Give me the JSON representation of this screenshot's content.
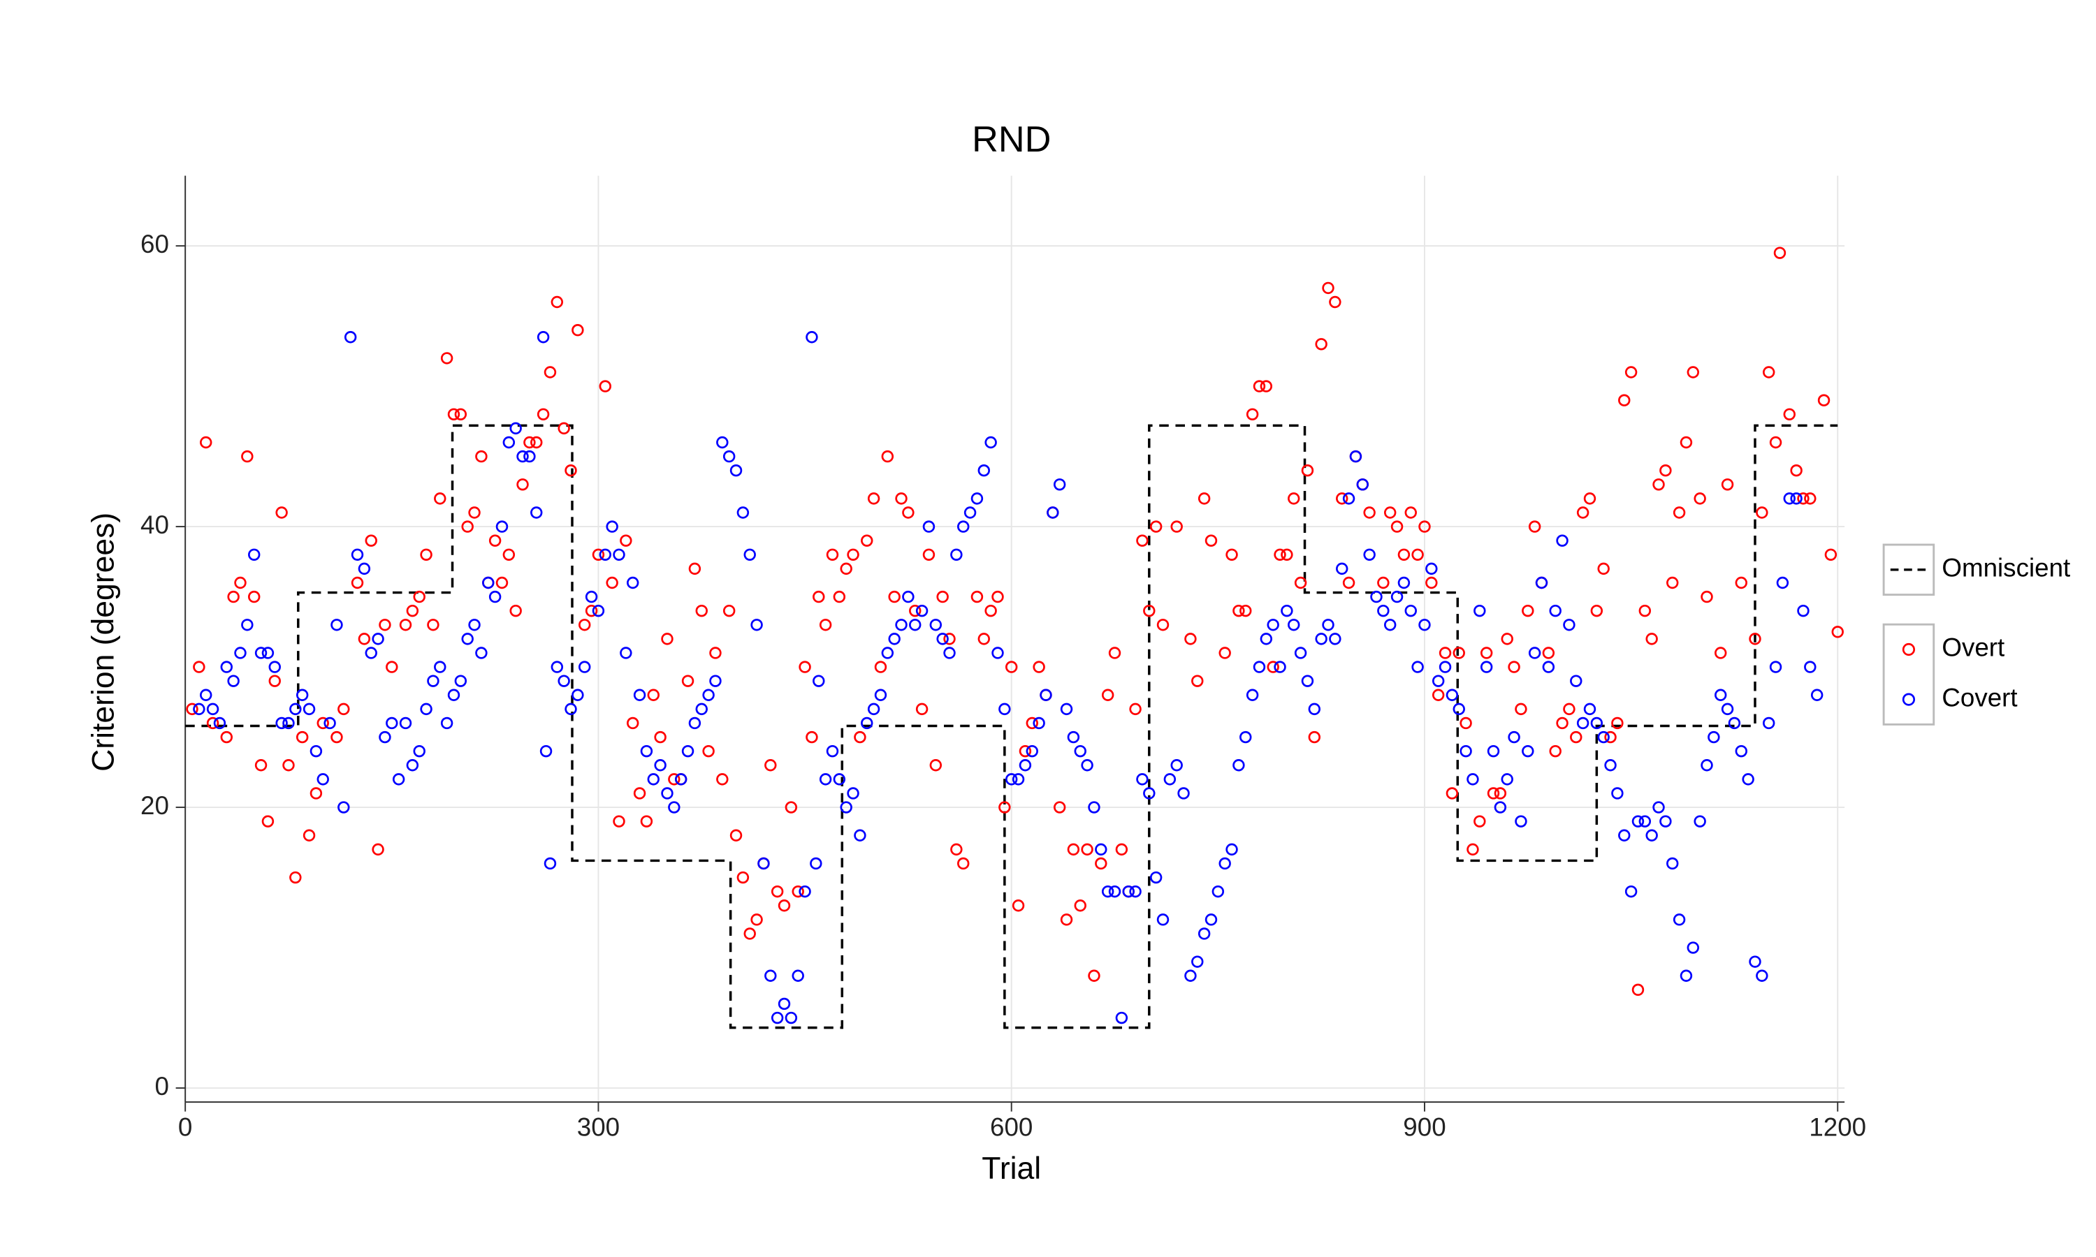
{
  "chart_data": {
    "type": "scatter",
    "title": "RND",
    "x_label": "Trial",
    "y_label": "Criterion (degrees)",
    "xlim": [
      0,
      1205
    ],
    "ylim": [
      -1,
      65
    ],
    "xticks": [
      0,
      300,
      600,
      900,
      1200
    ],
    "yticks": [
      0,
      20,
      40,
      60
    ],
    "grid": true,
    "legend_position": "right",
    "series": [
      {
        "name": "Omniscient",
        "type": "line",
        "color": "#000000",
        "dashed": true,
        "x": [
          0,
          82,
          82,
          194,
          194,
          281,
          281,
          396,
          396,
          477,
          477,
          595,
          595,
          700,
          700,
          813,
          813,
          924,
          924,
          1025,
          1025,
          1140,
          1140,
          1200
        ],
        "values": [
          25.8,
          25.8,
          35.3,
          35.3,
          47.2,
          47.2,
          16.2,
          16.2,
          4.3,
          4.3,
          25.8,
          25.8,
          4.3,
          4.3,
          47.2,
          47.2,
          35.3,
          35.3,
          16.2,
          16.2,
          25.8,
          25.8,
          47.2,
          47.2
        ]
      },
      {
        "name": "Overt",
        "type": "scatter",
        "color": "#ff0000",
        "x": [
          5,
          10,
          15,
          20,
          30,
          35,
          40,
          45,
          50,
          55,
          60,
          65,
          70,
          75,
          80,
          85,
          90,
          95,
          100,
          110,
          115,
          125,
          130,
          135,
          140,
          145,
          150,
          160,
          165,
          170,
          175,
          180,
          185,
          190,
          195,
          200,
          205,
          210,
          215,
          220,
          225,
          230,
          235,
          240,
          245,
          250,
          255,
          260,
          265,
          270,
          275,
          280,
          285,
          290,
          295,
          300,
          305,
          310,
          315,
          320,
          325,
          330,
          335,
          340,
          345,
          350,
          355,
          360,
          365,
          370,
          375,
          380,
          385,
          390,
          395,
          400,
          405,
          410,
          415,
          420,
          425,
          430,
          435,
          440,
          445,
          450,
          455,
          460,
          465,
          470,
          475,
          480,
          485,
          490,
          495,
          500,
          505,
          510,
          515,
          520,
          525,
          530,
          535,
          540,
          545,
          550,
          555,
          560,
          565,
          575,
          580,
          585,
          590,
          595,
          600,
          605,
          610,
          615,
          620,
          625,
          630,
          635,
          640,
          645,
          650,
          655,
          660,
          665,
          670,
          675,
          680,
          685,
          690,
          695,
          700,
          705,
          710,
          720,
          730,
          735,
          740,
          745,
          755,
          760,
          765,
          770,
          775,
          780,
          785,
          790,
          795,
          800,
          805,
          810,
          815,
          820,
          825,
          830,
          835,
          840,
          845,
          850,
          855,
          860,
          870,
          875,
          880,
          885,
          890,
          895,
          900,
          905,
          910,
          915,
          920,
          925,
          930,
          935,
          940,
          945,
          950,
          955,
          960,
          965,
          970,
          975,
          980,
          985,
          990,
          995,
          1000,
          1005,
          1010,
          1015,
          1020,
          1025,
          1030,
          1035,
          1040,
          1045,
          1050,
          1055,
          1060,
          1065,
          1070,
          1075,
          1080,
          1085,
          1090,
          1095,
          1100,
          1105,
          1115,
          1120,
          1130,
          1140,
          1145,
          1150,
          1155,
          1158,
          1165,
          1170,
          1175,
          1180,
          1190,
          1195,
          1200
        ],
        "values": [
          27,
          30,
          46,
          26,
          25,
          35,
          36,
          45,
          35,
          23,
          19,
          29,
          41,
          23,
          15,
          25,
          18,
          21,
          26,
          25,
          27,
          36,
          32,
          39,
          17,
          33,
          30,
          33,
          34,
          35,
          38,
          33,
          42,
          52,
          48,
          48,
          40,
          41,
          45,
          36,
          39,
          36,
          38,
          34,
          43,
          46,
          46,
          48,
          51,
          56,
          47,
          44,
          54,
          33,
          34,
          38,
          50,
          36,
          19,
          39,
          26,
          21,
          19,
          28,
          25,
          32,
          22,
          22,
          29,
          37,
          34,
          24,
          31,
          22,
          34,
          18,
          15,
          11,
          12,
          16,
          23,
          14,
          13,
          20,
          14,
          30,
          25,
          35,
          33,
          38,
          35,
          37,
          38,
          25,
          39,
          42,
          30,
          45,
          35,
          42,
          41,
          34,
          27,
          38,
          23,
          35,
          32,
          17,
          16,
          35,
          32,
          34,
          35,
          20,
          30,
          13,
          24,
          26,
          30,
          28,
          41,
          20,
          12,
          17,
          13,
          17,
          8,
          16,
          28,
          31,
          17,
          14,
          27,
          39,
          34,
          40,
          33,
          40,
          32,
          29,
          42,
          39,
          31,
          38,
          34,
          34,
          48,
          50,
          50,
          30,
          38,
          38,
          42,
          36,
          44,
          25,
          53,
          57,
          56,
          42,
          36,
          45,
          43,
          41,
          36,
          41,
          40,
          38,
          41,
          38,
          40,
          36,
          28,
          31,
          21,
          31,
          26,
          17,
          19,
          31,
          21,
          21,
          32,
          30,
          27,
          34,
          40,
          36,
          31,
          24,
          26,
          27,
          25,
          41,
          42,
          34,
          37,
          25,
          26,
          49,
          51,
          7,
          34,
          32,
          43,
          44,
          36,
          41,
          46,
          51,
          42,
          35,
          31,
          43,
          36,
          32,
          41,
          51,
          46,
          59.5,
          48,
          44,
          42,
          42,
          49,
          38,
          32.5
        ]
      },
      {
        "name": "Covert",
        "type": "scatter",
        "color": "#0000ff",
        "x": [
          10,
          15,
          20,
          25,
          30,
          35,
          40,
          45,
          50,
          55,
          60,
          65,
          70,
          75,
          80,
          85,
          90,
          95,
          100,
          105,
          110,
          115,
          120,
          125,
          130,
          135,
          140,
          145,
          150,
          155,
          160,
          165,
          170,
          175,
          180,
          185,
          190,
          195,
          200,
          205,
          210,
          215,
          220,
          225,
          230,
          235,
          240,
          245,
          250,
          255,
          260,
          262,
          265,
          270,
          275,
          280,
          285,
          290,
          295,
          300,
          305,
          310,
          315,
          320,
          325,
          330,
          335,
          340,
          345,
          350,
          355,
          360,
          365,
          370,
          375,
          380,
          385,
          390,
          395,
          400,
          405,
          410,
          415,
          420,
          425,
          430,
          435,
          440,
          445,
          450,
          455,
          458,
          460,
          465,
          470,
          475,
          480,
          485,
          490,
          495,
          500,
          505,
          510,
          515,
          520,
          525,
          530,
          535,
          540,
          545,
          550,
          555,
          560,
          565,
          570,
          575,
          580,
          585,
          590,
          595,
          600,
          605,
          610,
          615,
          620,
          625,
          630,
          635,
          640,
          645,
          650,
          655,
          660,
          665,
          670,
          675,
          680,
          685,
          690,
          695,
          700,
          705,
          710,
          715,
          720,
          725,
          730,
          735,
          740,
          745,
          750,
          755,
          760,
          765,
          770,
          775,
          780,
          785,
          790,
          795,
          800,
          805,
          810,
          815,
          820,
          825,
          830,
          835,
          840,
          845,
          850,
          855,
          860,
          865,
          870,
          875,
          880,
          885,
          890,
          895,
          900,
          905,
          910,
          915,
          920,
          925,
          930,
          935,
          940,
          945,
          950,
          955,
          960,
          965,
          970,
          975,
          980,
          985,
          990,
          995,
          1000,
          1005,
          1010,
          1015,
          1020,
          1025,
          1030,
          1035,
          1040,
          1045,
          1050,
          1055,
          1060,
          1065,
          1070,
          1075,
          1080,
          1085,
          1090,
          1095,
          1100,
          1105,
          1110,
          1115,
          1120,
          1125,
          1130,
          1135,
          1140,
          1145,
          1150,
          1155,
          1160,
          1165,
          1170,
          1175,
          1180,
          1185
        ],
        "values": [
          27,
          28,
          27,
          26,
          30,
          29,
          31,
          33,
          38,
          31,
          31,
          30,
          26,
          26,
          27,
          28,
          27,
          24,
          22,
          26,
          33,
          20,
          53.5,
          38,
          37,
          31,
          32,
          25,
          26,
          22,
          26,
          23,
          24,
          27,
          29,
          30,
          26,
          28,
          29,
          32,
          33,
          31,
          36,
          35,
          40,
          46,
          47,
          45,
          45,
          41,
          53.5,
          24,
          16,
          30,
          29,
          27,
          28,
          30,
          35,
          34,
          38,
          40,
          38,
          31,
          36,
          28,
          24,
          22,
          23,
          21,
          20,
          22,
          24,
          26,
          27,
          28,
          29,
          46,
          45,
          44,
          41,
          38,
          33,
          16,
          8,
          5,
          6,
          5,
          8,
          14,
          53.5,
          16,
          29,
          22,
          24,
          22,
          20,
          21,
          18,
          26,
          27,
          28,
          31,
          32,
          33,
          35,
          33,
          34,
          40,
          33,
          32,
          31,
          38,
          40,
          41,
          42,
          44,
          46,
          31,
          27,
          22,
          22,
          23,
          24,
          26,
          28,
          41,
          43,
          27,
          25,
          24,
          23,
          20,
          17,
          14,
          14,
          5,
          14,
          14,
          22,
          21,
          15,
          12,
          22,
          23,
          21,
          8,
          9,
          11,
          12,
          14,
          16,
          17,
          23,
          25,
          28,
          30,
          32,
          33,
          30,
          34,
          33,
          31,
          29,
          27,
          32,
          33,
          32,
          37,
          42,
          45,
          43,
          38,
          35,
          34,
          33,
          35,
          36,
          34,
          30,
          33,
          37,
          29,
          30,
          28,
          27,
          24,
          22,
          34,
          30,
          24,
          20,
          22,
          25,
          19,
          24,
          31,
          36,
          30,
          34,
          39,
          33,
          29,
          26,
          27,
          26,
          25,
          23,
          21,
          18,
          14,
          19,
          19,
          18,
          20,
          19,
          16,
          12,
          8,
          10,
          19,
          23,
          25,
          28,
          27,
          26,
          24,
          22,
          9,
          8,
          26,
          30,
          36,
          42,
          42,
          34,
          30,
          28
        ]
      }
    ]
  }
}
